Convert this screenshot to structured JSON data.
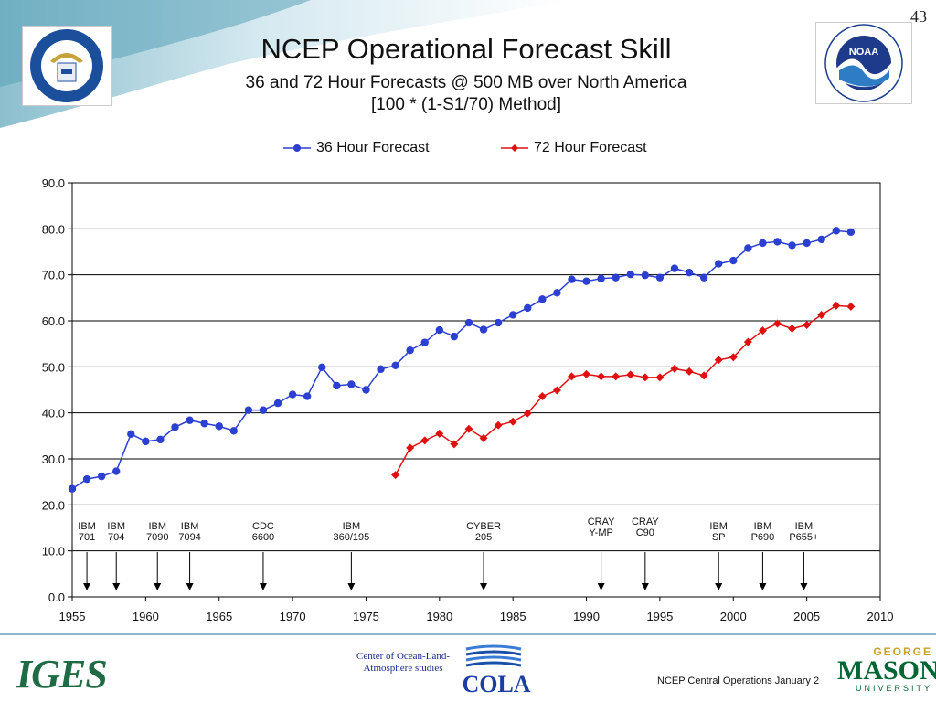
{
  "slide_number": "43",
  "title": "NCEP Operational Forecast Skill",
  "subtitle_line1": "36 and 72 Hour Forecasts @ 500 MB over North America",
  "subtitle_line2": "[100 * (1-S1/70) Method]",
  "left_logo": {
    "name": "Department of Commerce seal",
    "text": "DEPARTMENT OF COMMERCE · UNITED STATES OF AMERICA"
  },
  "right_logo": {
    "name": "NOAA logo",
    "text": "NOAA",
    "ring_text": "NATIONAL OCEANIC AND ATMOSPHERIC ADMINISTRATION · U.S. DEPARTMENT OF COMMERCE"
  },
  "chart_data": {
    "type": "line",
    "xlim": [
      1955,
      2010
    ],
    "ylim": [
      0,
      90
    ],
    "x_ticks": [
      "1955",
      "1960",
      "1965",
      "1970",
      "1975",
      "1980",
      "1985",
      "1990",
      "1995",
      "2000",
      "2005",
      "2010"
    ],
    "y_ticks": [
      "0.0",
      "10.0",
      "20.0",
      "30.0",
      "40.0",
      "50.0",
      "60.0",
      "70.0",
      "80.0",
      "90.0"
    ],
    "grid": "horizontal",
    "legend_position": "top",
    "series": [
      {
        "name": "36 Hour Forecast",
        "color": "#2b3fd0",
        "marker": "circle",
        "x": [
          1955,
          1956,
          1957,
          1958,
          1959,
          1960,
          1961,
          1962,
          1963,
          1964,
          1965,
          1966,
          1967,
          1968,
          1969,
          1970,
          1971,
          1972,
          1973,
          1974,
          1975,
          1976,
          1977,
          1978,
          1979,
          1980,
          1981,
          1982,
          1983,
          1984,
          1985,
          1986,
          1987,
          1988,
          1989,
          1990,
          1991,
          1992,
          1993,
          1994,
          1995,
          1996,
          1997,
          1998,
          1999,
          2000,
          2001,
          2002,
          2003,
          2004,
          2005,
          2006,
          2007,
          2008
        ],
        "y": [
          23.5,
          25.6,
          26.2,
          27.3,
          35.4,
          33.8,
          34.2,
          36.9,
          38.4,
          37.7,
          37.1,
          36.1,
          40.6,
          40.6,
          42.1,
          44.0,
          43.6,
          49.9,
          45.9,
          46.2,
          45.0,
          49.5,
          50.3,
          53.6,
          55.3,
          58.0,
          56.6,
          59.6,
          58.1,
          59.6,
          61.3,
          62.8,
          64.7,
          66.1,
          69.0,
          68.6,
          69.2,
          69.4,
          70.1,
          69.9,
          69.4,
          71.4,
          70.5,
          69.4,
          72.4,
          73.1,
          75.8,
          76.9,
          77.2,
          76.4,
          76.9,
          77.7,
          79.6,
          79.3
        ]
      },
      {
        "name": "72 Hour Forecast",
        "color": "#e01010",
        "marker": "diamond",
        "x": [
          1977,
          1978,
          1979,
          1980,
          1981,
          1982,
          1983,
          1984,
          1985,
          1986,
          1987,
          1988,
          1989,
          1990,
          1991,
          1992,
          1993,
          1994,
          1995,
          1996,
          1997,
          1998,
          1999,
          2000,
          2001,
          2002,
          2003,
          2004,
          2005,
          2006,
          2007,
          2008
        ],
        "y": [
          26.5,
          32.4,
          34.0,
          35.5,
          33.2,
          36.5,
          34.5,
          37.3,
          38.1,
          39.9,
          43.6,
          44.9,
          47.9,
          48.4,
          47.9,
          47.9,
          48.3,
          47.7,
          47.7,
          49.6,
          49.0,
          48.1,
          51.5,
          52.1,
          55.4,
          57.9,
          59.4,
          58.3,
          59.1,
          61.3,
          63.3,
          63.1
        ]
      }
    ],
    "annotations": [
      {
        "label": [
          "IBM",
          "701"
        ],
        "year": 1956
      },
      {
        "label": [
          "IBM",
          "704"
        ],
        "year": 1958
      },
      {
        "label": [
          "IBM",
          "7090"
        ],
        "year": 1960.8
      },
      {
        "label": [
          "IBM",
          "7094"
        ],
        "year": 1963
      },
      {
        "label": [
          "CDC",
          "6600"
        ],
        "year": 1968
      },
      {
        "label": [
          "IBM",
          "360/195"
        ],
        "year": 1974
      },
      {
        "label": [
          "CYBER",
          "205"
        ],
        "year": 1983
      },
      {
        "label": [
          "CRAY",
          "Y-MP"
        ],
        "year": 1991
      },
      {
        "label": [
          "CRAY",
          "C90"
        ],
        "year": 1994
      },
      {
        "label": [
          "IBM",
          "SP"
        ],
        "year": 1999
      },
      {
        "label": [
          "IBM",
          "P690"
        ],
        "year": 2002
      },
      {
        "label": [
          "IBM",
          "P655+"
        ],
        "year": 2004.8
      }
    ]
  },
  "footer": {
    "iges": "IGES",
    "cola_text_line1": "Center of Ocean-Land-",
    "cola_text_line2": "Atmosphere studies",
    "cola": "COLA",
    "note": "NCEP Central Operations January 2",
    "gmu_top": "GEORGE",
    "gmu_main": "MASON",
    "gmu_bottom": "UNIVERSITY"
  }
}
